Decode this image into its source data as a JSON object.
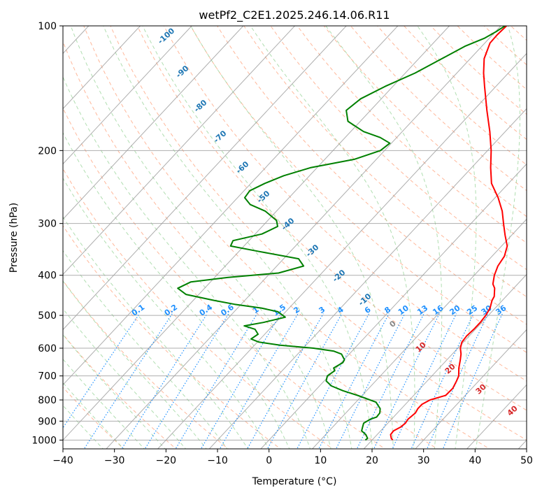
{
  "chart_data": {
    "type": "line",
    "title": "wetPf2_C2E1.2025.246.14.06.R11",
    "xlabel": "Temperature (°C)",
    "ylabel": "Pressure (hPa)",
    "xlim": [
      -40,
      50
    ],
    "ylim": [
      1050,
      100
    ],
    "y_scale": "log",
    "skew_deg_per_decade": 75,
    "grid": true,
    "x_ticks": [
      -40,
      -30,
      -20,
      -10,
      0,
      10,
      20,
      30,
      40,
      50
    ],
    "x_tick_labels": [
      "−40",
      "−30",
      "−20",
      "−10",
      "0",
      "10",
      "20",
      "30",
      "40",
      "50"
    ],
    "y_ticks": [
      100,
      200,
      300,
      400,
      500,
      600,
      700,
      800,
      900,
      1000
    ],
    "y_tick_labels": [
      "100",
      "200",
      "300",
      "400",
      "500",
      "600",
      "700",
      "800",
      "900",
      "1000"
    ],
    "colors": {
      "temperature": "#ff0000",
      "dewpoint": "#008000",
      "isotherm": "#a0a0a0",
      "dry_adiabat": "#ffa07a",
      "moist_adiabat": "#90d090",
      "mixing_ratio": "#1e90ff",
      "isotherm_label": "#1f77b4",
      "warm_label": "#d62728",
      "zero_label": "#888888"
    },
    "series": [
      {
        "name": "",
        "values": [
          [
            1000,
            24
          ],
          [
            990,
            23.4
          ],
          [
            970,
            22.6
          ],
          [
            950,
            22.5
          ],
          [
            930,
            23.2
          ],
          [
            910,
            23.4
          ],
          [
            890,
            23.2
          ],
          [
            860,
            23.5
          ],
          [
            840,
            23.2
          ],
          [
            820,
            23.2
          ],
          [
            800,
            24
          ],
          [
            780,
            26.2
          ],
          [
            750,
            26.3
          ],
          [
            720,
            25.7
          ],
          [
            700,
            25.2
          ],
          [
            670,
            23.8
          ],
          [
            640,
            22.6
          ],
          [
            620,
            21.7
          ],
          [
            600,
            20.5
          ],
          [
            580,
            19.7
          ],
          [
            560,
            19.5
          ],
          [
            540,
            19.7
          ],
          [
            520,
            19.7
          ],
          [
            500,
            19.5
          ],
          [
            480,
            19
          ],
          [
            460,
            18
          ],
          [
            450,
            17.7
          ],
          [
            430,
            16.3
          ],
          [
            420,
            15.2
          ],
          [
            400,
            13.9
          ],
          [
            380,
            12.9
          ],
          [
            360,
            12.4
          ],
          [
            340,
            11.1
          ],
          [
            320,
            8.7
          ],
          [
            300,
            6.3
          ],
          [
            280,
            3.8
          ],
          [
            260,
            0.6
          ],
          [
            240,
            -3.3
          ],
          [
            220,
            -6.3
          ],
          [
            200,
            -9.3
          ],
          [
            180,
            -13
          ],
          [
            160,
            -17.4
          ],
          [
            140,
            -22.2
          ],
          [
            130,
            -24.8
          ],
          [
            120,
            -27.3
          ],
          [
            110,
            -29
          ],
          [
            105,
            -29.1
          ],
          [
            100,
            -28.9
          ]
        ]
      },
      {
        "name": "",
        "values": [
          [
            1000,
            18.7
          ],
          [
            990,
            18.8
          ],
          [
            970,
            17.8
          ],
          [
            950,
            16.3
          ],
          [
            930,
            15.8
          ],
          [
            910,
            15.3
          ],
          [
            890,
            15.9
          ],
          [
            880,
            16.7
          ],
          [
            860,
            16.6
          ],
          [
            840,
            15.9
          ],
          [
            810,
            13.9
          ],
          [
            780,
            9.1
          ],
          [
            760,
            5.4
          ],
          [
            740,
            2.3
          ],
          [
            720,
            0.4
          ],
          [
            700,
            -0.3
          ],
          [
            680,
            0.2
          ],
          [
            670,
            -0.5
          ],
          [
            650,
            0.3
          ],
          [
            640,
            0.1
          ],
          [
            620,
            -1.5
          ],
          [
            610,
            -3.5
          ],
          [
            600,
            -8
          ],
          [
            590,
            -15
          ],
          [
            580,
            -19.7
          ],
          [
            570,
            -21.8
          ],
          [
            555,
            -21.3
          ],
          [
            540,
            -22.8
          ],
          [
            530,
            -25.5
          ],
          [
            520,
            -22.4
          ],
          [
            505,
            -19.1
          ],
          [
            490,
            -21.5
          ],
          [
            480,
            -25.4
          ],
          [
            470,
            -31.3
          ],
          [
            460,
            -36
          ],
          [
            445,
            -42.5
          ],
          [
            430,
            -45.2
          ],
          [
            415,
            -43.8
          ],
          [
            405,
            -37.5
          ],
          [
            395,
            -28.4
          ],
          [
            380,
            -24.8
          ],
          [
            365,
            -27.1
          ],
          [
            350,
            -36.4
          ],
          [
            340,
            -42.6
          ],
          [
            330,
            -43.1
          ],
          [
            318,
            -38.7
          ],
          [
            305,
            -37
          ],
          [
            295,
            -38.3
          ],
          [
            280,
            -42.2
          ],
          [
            270,
            -46.3
          ],
          [
            260,
            -48.6
          ],
          [
            250,
            -48.9
          ],
          [
            240,
            -47.3
          ],
          [
            230,
            -45
          ],
          [
            220,
            -41.3
          ],
          [
            210,
            -34.3
          ],
          [
            200,
            -30.8
          ],
          [
            192,
            -30.3
          ],
          [
            186,
            -33.2
          ],
          [
            180,
            -37.5
          ],
          [
            170,
            -42.4
          ],
          [
            160,
            -44.7
          ],
          [
            150,
            -44
          ],
          [
            140,
            -41.5
          ],
          [
            130,
            -38.1
          ],
          [
            120,
            -35.5
          ],
          [
            112,
            -33.3
          ],
          [
            107,
            -30.9
          ],
          [
            103,
            -29.8
          ],
          [
            100,
            -29.2
          ]
        ]
      }
    ],
    "mixing_ratio_labels": [
      "0.1",
      "0.2",
      "0.4",
      "0.6",
      "1",
      "1.5",
      "2",
      "3",
      "4",
      "6",
      "8",
      "10",
      "13",
      "16",
      "20",
      "25",
      "30",
      "36"
    ],
    "isotherm_labels": [
      "-100",
      "-90",
      "-80",
      "-70",
      "-60",
      "-50",
      "-40",
      "-30",
      "-20",
      "-10",
      "0",
      "10",
      "20",
      "30",
      "40"
    ]
  }
}
